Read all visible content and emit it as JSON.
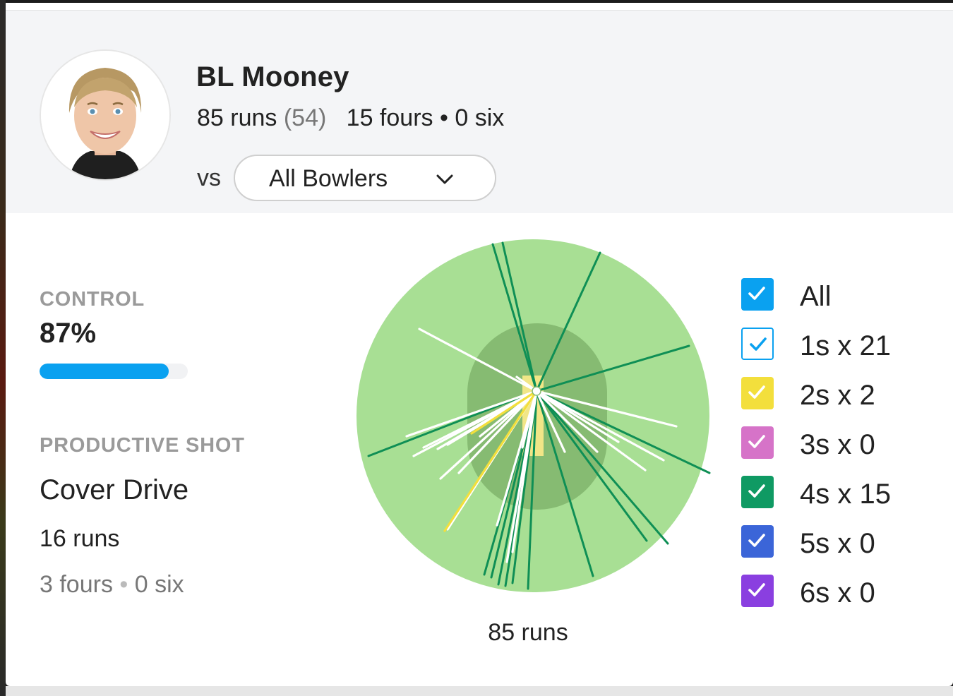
{
  "player": {
    "name": "BL Mooney",
    "runs": "85 runs",
    "balls": "(54)",
    "fours": "15 fours",
    "separator": "•",
    "sixes": "0 six"
  },
  "filter": {
    "vs_label": "vs",
    "selected": "All Bowlers"
  },
  "control": {
    "label": "CONTROL",
    "value": "87%",
    "fraction": 0.87,
    "color": "#0aa1f0"
  },
  "productive_shot": {
    "label": "PRODUCTIVE SHOT",
    "name": "Cover Drive",
    "runs": "16 runs",
    "fours": "3 fours",
    "separator": "•",
    "sixes": "0 six"
  },
  "wagon_wheel": {
    "total_label": "85 runs",
    "colors": {
      "outfield": "#a8df94",
      "infield": "#86bb72",
      "pitch": "#f1e687",
      "ones": "#ffffff",
      "twos": "#f3df3c",
      "fours": "#0f8f55"
    }
  },
  "legend": [
    {
      "label": "All",
      "checked": true,
      "color": "#0aa1f0",
      "filled": true,
      "icon": "check-icon"
    },
    {
      "label": "1s x 21",
      "checked": true,
      "color": "#0aa1f0",
      "filled": false,
      "icon": "check-icon"
    },
    {
      "label": "2s x 2",
      "checked": true,
      "color": "#f3df3c",
      "filled": true,
      "icon": "check-icon"
    },
    {
      "label": "3s x 0",
      "checked": true,
      "color": "#d673c8",
      "filled": true,
      "icon": "check-icon"
    },
    {
      "label": "4s x 15",
      "checked": true,
      "color": "#0f9a63",
      "filled": true,
      "icon": "check-icon"
    },
    {
      "label": "5s x 0",
      "checked": true,
      "color": "#3b65d8",
      "filled": true,
      "icon": "check-icon"
    },
    {
      "label": "6s x 0",
      "checked": true,
      "color": "#8a3fe0",
      "filled": true,
      "icon": "check-icon"
    }
  ],
  "icons": {
    "dropdown": "chevron-down-icon",
    "avatar": "player-avatar"
  }
}
